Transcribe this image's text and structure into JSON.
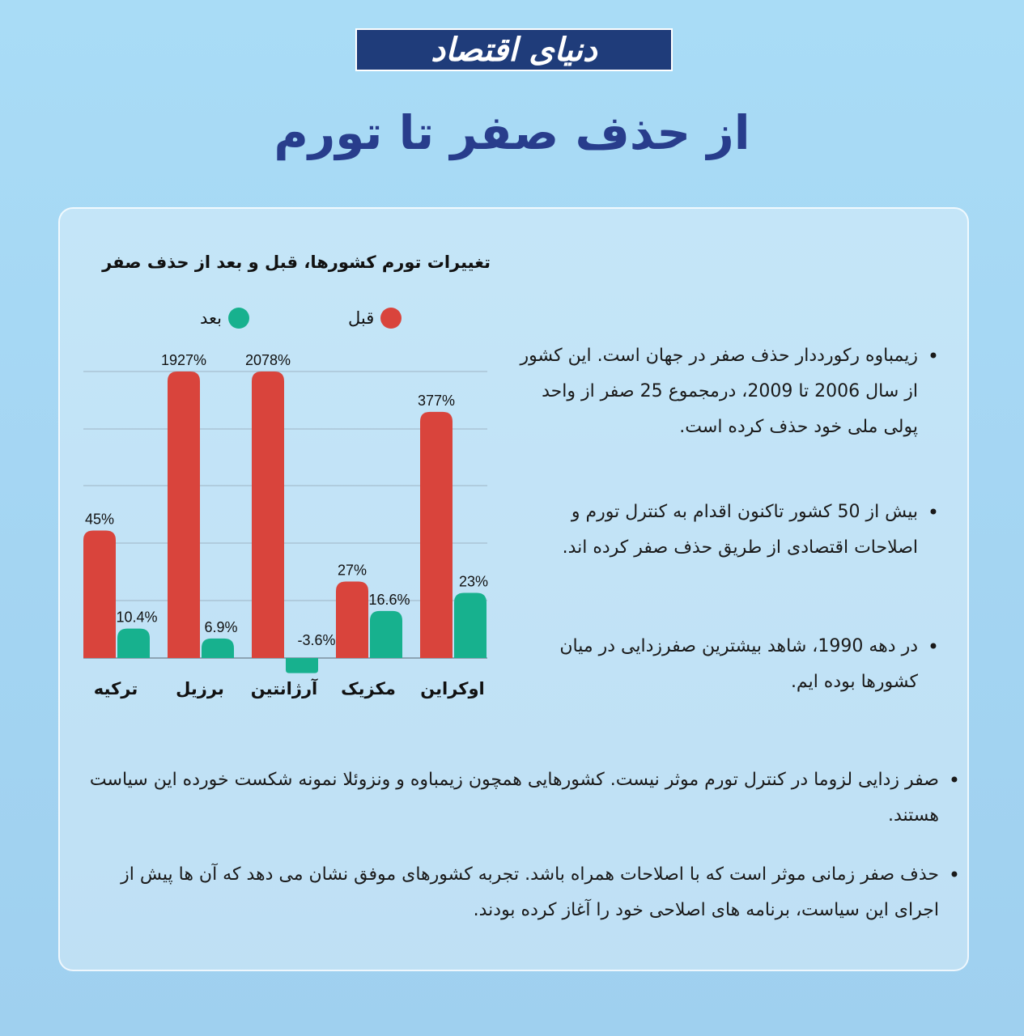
{
  "header": {
    "logo_text": "دنیای اقتصاد",
    "title": "از حذف صفر تا تورم"
  },
  "colors": {
    "before": "#d9443c",
    "after": "#17b18e",
    "title": "#283d8c",
    "logo_bg": "#1f3c7a"
  },
  "chart_data": {
    "type": "bar",
    "title": "تغییرات تورم کشورها، قبل و بعد از حذف صفر",
    "xlabel": "",
    "ylabel": "",
    "legend_position": "top",
    "grid": true,
    "categories": [
      "ترکیه",
      "برزیل",
      "آرژانتین",
      "مکزیک",
      "اوکراین"
    ],
    "series": [
      {
        "name": "قبل",
        "values": [
          45,
          1927,
          2078,
          27,
          377
        ],
        "labels": [
          "45%",
          "1927%",
          "2078%",
          "27%",
          "377%"
        ]
      },
      {
        "name": "بعد",
        "values": [
          10.4,
          6.9,
          -3.6,
          16.6,
          23
        ],
        "labels": [
          "10.4%",
          "6.9%",
          "-3.6%",
          "16.6%",
          "23%"
        ]
      }
    ]
  },
  "bullets": [
    "زیمباوه رکورددار حذف صفر در جهان است. این کشور از سال 2006 تا 2009، درمجموع 25 صفر از واحد پولی ملی خود حذف کرده است.",
    "بیش از 50 کشور تاکنون اقدام به کنترل تورم و اصلاحات اقتصادی از طریق حذف صفر کرده اند.",
    "در دهه 1990، شاهد بیشترین صفرزدایی در میان کشورها بوده ایم.",
    "صفر زدایی لزوما در کنترل تورم موثر نیست. کشورهایی همچون زیمباوه و ونزوئلا نمونه شکست خورده این سیاست هستند.",
    "حذف صفر زمانی موثر است که با اصلاحات همراه باشد. تجربه کشورهای موفق نشان می دهد که آن ها پیش از اجرای این سیاست، برنامه های اصلاحی خود را آغاز کرده بودند."
  ]
}
